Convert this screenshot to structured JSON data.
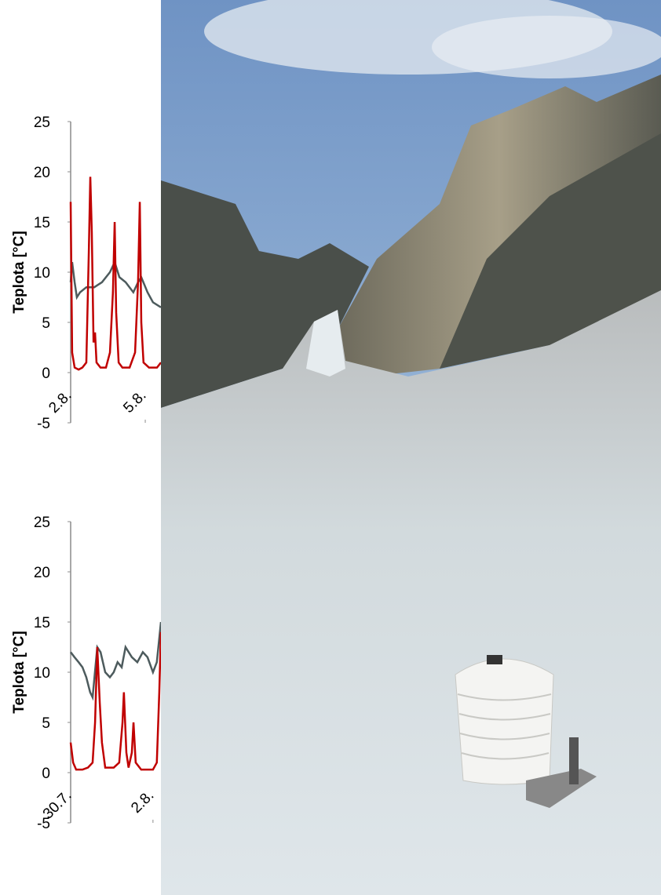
{
  "chart_data": [
    {
      "type": "line",
      "y_label": "Teplota [°C]",
      "ylim": [
        -5,
        25
      ],
      "yticks": [
        -5,
        0,
        5,
        10,
        15,
        20,
        25
      ],
      "xlim": [
        0,
        3.63
      ],
      "xticks": [
        {
          "value": 0,
          "label": "2.8."
        },
        {
          "value": 3,
          "label": "5.8."
        }
      ],
      "series": [
        {
          "color": "#4d5b5d",
          "x": [
            0,
            0.06,
            0.16,
            0.25,
            0.38,
            0.63,
            0.95,
            1.26,
            1.58,
            1.77,
            1.96,
            2.21,
            2.52,
            2.71,
            2.84,
            3.09,
            3.31,
            3.63
          ],
          "values": [
            9,
            11,
            9,
            7.5,
            8,
            8.5,
            8.5,
            9,
            10,
            11,
            9.5,
            9,
            8,
            9,
            9.5,
            8,
            7,
            6.5
          ]
        },
        {
          "color": "#c00000",
          "x": [
            0,
            0.06,
            0.16,
            0.32,
            0.47,
            0.63,
            0.73,
            0.79,
            0.85,
            0.92,
            0.98,
            1.04,
            1.2,
            1.42,
            1.58,
            1.7,
            1.77,
            1.83,
            1.93,
            2.08,
            2.37,
            2.59,
            2.71,
            2.78,
            2.84,
            2.93,
            3.15,
            3.47,
            3.63
          ],
          "values": [
            17,
            2,
            0.5,
            0.3,
            0.5,
            1,
            12,
            19.5,
            14,
            3,
            4,
            1,
            0.5,
            0.5,
            2,
            8,
            15,
            6,
            1,
            0.5,
            0.5,
            2,
            9,
            17,
            5,
            1,
            0.5,
            0.5,
            1
          ]
        }
      ]
    },
    {
      "type": "line",
      "y_label": "Teplota [°C]",
      "ylim": [
        -5,
        25
      ],
      "yticks": [
        -5,
        0,
        5,
        10,
        15,
        20,
        25
      ],
      "xlim": [
        0,
        3.29
      ],
      "xticks": [
        {
          "value": 0,
          "label": "30.7."
        },
        {
          "value": 3,
          "label": "2.8."
        }
      ],
      "series": [
        {
          "color": "#4d5b5d",
          "x": [
            0,
            0.14,
            0.29,
            0.43,
            0.57,
            0.71,
            0.8,
            0.97,
            1.09,
            1.26,
            1.43,
            1.57,
            1.71,
            1.86,
            2,
            2.23,
            2.43,
            2.63,
            2.8,
            3,
            3.14,
            3.29
          ],
          "values": [
            12,
            11.5,
            11,
            10.5,
            9.5,
            8,
            7.5,
            12.5,
            12,
            10,
            9.5,
            10,
            11,
            10.5,
            12.5,
            11.5,
            11,
            12,
            11.5,
            10,
            11,
            15
          ]
        },
        {
          "color": "#c00000",
          "x": [
            0,
            0.09,
            0.2,
            0.43,
            0.63,
            0.8,
            0.89,
            0.97,
            1.06,
            1.14,
            1.26,
            1.57,
            1.77,
            1.89,
            1.94,
            2.03,
            2.11,
            2.23,
            2.29,
            2.37,
            2.57,
            3,
            3.14,
            3.23,
            3.29
          ],
          "values": [
            3,
            1,
            0.3,
            0.3,
            0.5,
            1,
            5,
            12.5,
            7,
            3,
            0.5,
            0.5,
            1,
            5,
            8,
            2,
            0.5,
            2,
            5,
            1,
            0.3,
            0.3,
            1,
            8,
            14
          ]
        }
      ]
    }
  ]
}
